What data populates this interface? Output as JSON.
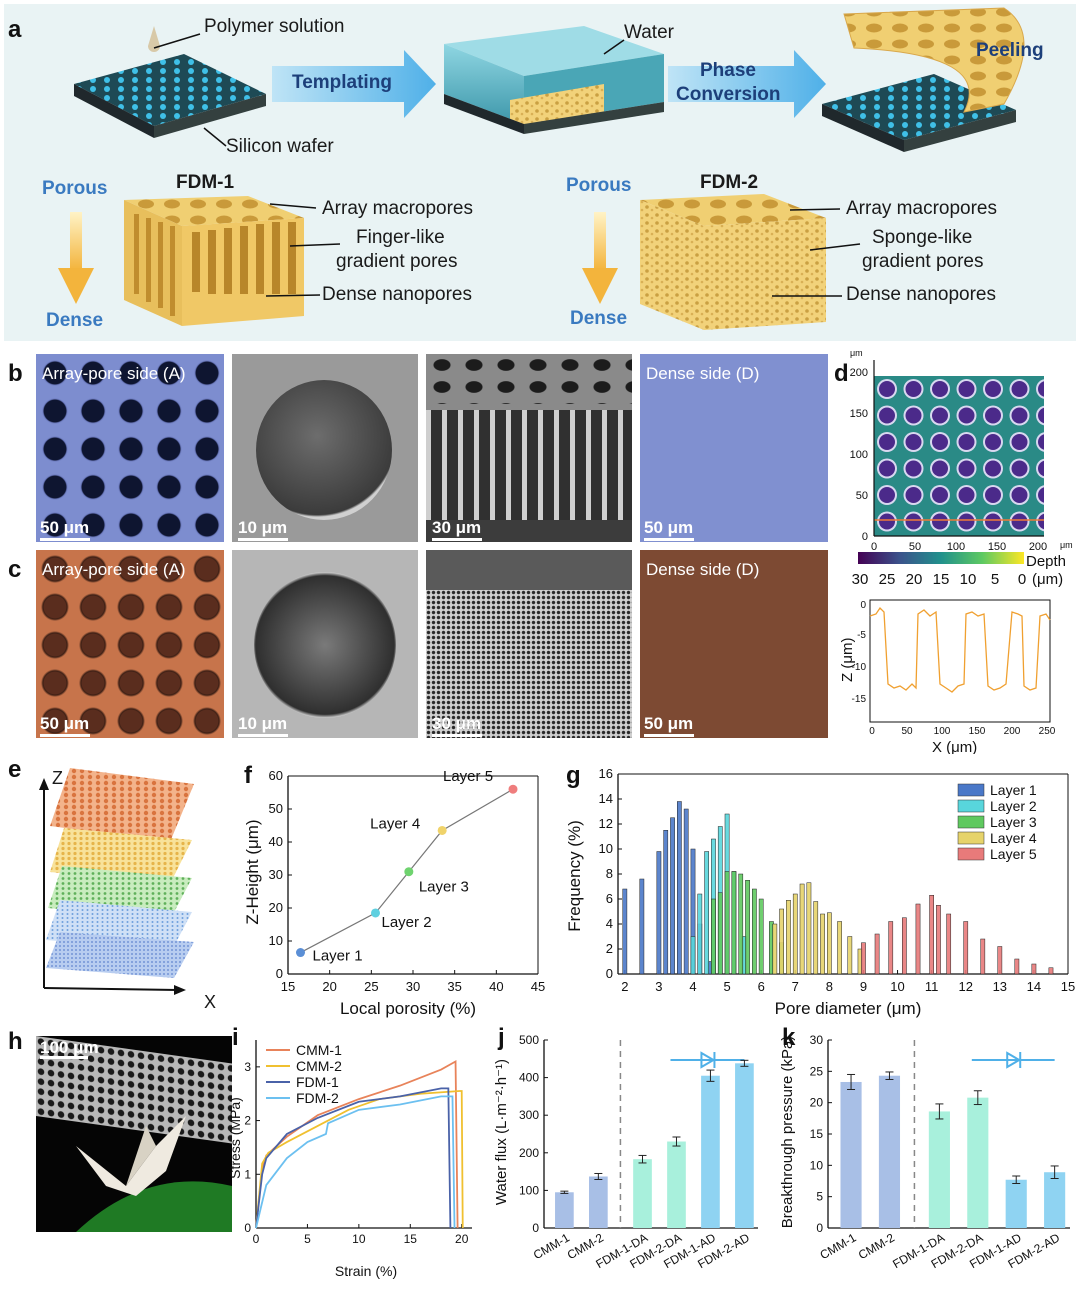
{
  "panel_labels": {
    "a": "a",
    "b": "b",
    "c": "c",
    "d": "d",
    "e": "e",
    "f": "f",
    "g": "g",
    "h": "h",
    "i": "i",
    "j": "j",
    "k": "k"
  },
  "panel_a": {
    "polymer_solution": "Polymer solution",
    "silicon_wafer": "Silicon wafer",
    "templating": "Templating",
    "water": "Water",
    "phase_conversion_1": "Phase",
    "phase_conversion_2": "Conversion",
    "peeling": "Peeling",
    "porous": "Porous",
    "dense": "Dense",
    "fdm1": "FDM-1",
    "fdm2": "FDM-2",
    "array_macropores": "Array macropores",
    "finger_1": "Finger-like",
    "finger_2": "gradient pores",
    "sponge_1": "Sponge-like",
    "sponge_2": "gradient pores",
    "dense_nanopores": "Dense nanopores",
    "colors": {
      "bg": "#e9f3f4",
      "arrow": "#5fb8e8",
      "arrow_text": "#1d3f7a",
      "porous_text": "#3a7ac0",
      "membrane": "#f0cf72"
    }
  },
  "panel_b": {
    "array_side": "Array-pore side (A)",
    "dense_side": "Dense side (D)",
    "scales": [
      "50 μm",
      "10 μm",
      "30 μm",
      "50 μm"
    ],
    "tint": "#7f8fd0"
  },
  "panel_c": {
    "array_side": "Array-pore side (A)",
    "dense_side": "Dense side (D)",
    "scales": [
      "50 μm",
      "10 μm",
      "30 μm",
      "50 μm"
    ],
    "tint": "#c7734a",
    "dense_color": "#7d4a33"
  },
  "panel_d": {
    "unit_um": "μm",
    "y_ticks": [
      "0",
      "50",
      "100",
      "150",
      "200"
    ],
    "x_ticks": [
      "0",
      "50",
      "100",
      "150",
      "200"
    ],
    "depth_label": "Depth",
    "depth_unit": "(μm)",
    "colorbar_ticks": [
      "30",
      "25",
      "20",
      "15",
      "10",
      "5",
      "0"
    ],
    "profile_ylabel": "Z (μm)",
    "profile_xlabel": "X (μm)",
    "profile_yticks": [
      "0",
      "-5",
      "-10",
      "-15"
    ],
    "profile_xticks": [
      "0",
      "50",
      "100",
      "150",
      "200",
      "250"
    ]
  },
  "panel_e": {
    "z": "Z",
    "x": "X",
    "layer_colors": [
      "#d9743f",
      "#e9c15a",
      "#7cc36e",
      "#6f9fdc",
      "#5f83cf"
    ]
  },
  "chart_data": [
    {
      "panel": "f",
      "type": "scatter",
      "xlabel": "Local porosity (%)",
      "ylabel": "Z-Height (μm)",
      "xlim": [
        15,
        45
      ],
      "ylim": [
        0,
        60
      ],
      "xticks": [
        "15",
        "20",
        "25",
        "30",
        "35",
        "40",
        "45"
      ],
      "yticks": [
        "0",
        "10",
        "20",
        "30",
        "40",
        "50",
        "60"
      ],
      "points": [
        {
          "label": "Layer 1",
          "x": 16.5,
          "y": 6.5,
          "color": "#5b8fd6"
        },
        {
          "label": "Layer 2",
          "x": 25.5,
          "y": 18.5,
          "color": "#5fd0e0"
        },
        {
          "label": "Layer 3",
          "x": 29.5,
          "y": 31,
          "color": "#6fd36f"
        },
        {
          "label": "Layer 4",
          "x": 33.5,
          "y": 43.5,
          "color": "#f0d36a"
        },
        {
          "label": "Layer 5",
          "x": 42,
          "y": 56,
          "color": "#ef7d7d"
        }
      ]
    },
    {
      "panel": "g",
      "type": "bar",
      "xlabel": "Pore diameter (μm)",
      "ylabel": "Frequency (%)",
      "xlim": [
        1.8,
        15
      ],
      "ylim": [
        0,
        16
      ],
      "xticks": [
        "2",
        "3",
        "4",
        "5",
        "6",
        "7",
        "8",
        "9",
        "10",
        "11",
        "12",
        "13",
        "14",
        "15"
      ],
      "yticks": [
        "0",
        "2",
        "4",
        "6",
        "8",
        "10",
        "12",
        "14",
        "16"
      ],
      "legend_position": "top-right",
      "series": [
        {
          "name": "Layer 1",
          "color": "#4a78c8",
          "x": [
            2,
            2.5,
            3,
            3.2,
            3.4,
            3.6,
            3.8,
            4,
            4.2,
            4.5
          ],
          "values": [
            6.8,
            7.6,
            9.8,
            11.5,
            12.5,
            13.8,
            13.2,
            10,
            4,
            1
          ]
        },
        {
          "name": "Layer 2",
          "color": "#58d6dc",
          "x": [
            4,
            4.2,
            4.4,
            4.6,
            4.8,
            5,
            5.2,
            5.5
          ],
          "values": [
            3,
            6.4,
            9.8,
            10.8,
            11.8,
            12.8,
            8.2,
            3
          ]
        },
        {
          "name": "Layer 3",
          "color": "#5fc95f",
          "x": [
            4.6,
            4.8,
            5,
            5.2,
            5.4,
            5.6,
            5.8,
            6,
            6.3,
            6.6
          ],
          "values": [
            6,
            6.5,
            8.2,
            8.2,
            8,
            7.5,
            6.8,
            6,
            4.2,
            2.5
          ]
        },
        {
          "name": "Layer 4",
          "color": "#e6d36a",
          "x": [
            6.4,
            6.6,
            6.8,
            7,
            7.2,
            7.4,
            7.6,
            7.8,
            8,
            8.3,
            8.6,
            8.9
          ],
          "values": [
            4,
            5.2,
            5.9,
            6.4,
            7.2,
            7.3,
            5.8,
            4.8,
            4.9,
            4.2,
            3,
            2
          ]
        },
        {
          "name": "Layer 5",
          "color": "#e87a7a",
          "x": [
            9,
            9.4,
            9.8,
            10.2,
            10.6,
            11,
            11.2,
            11.5,
            12,
            12.5,
            13,
            13.5,
            14,
            14.5
          ],
          "values": [
            2.5,
            3.2,
            4.2,
            4.5,
            5.6,
            6.3,
            5.5,
            4.8,
            4.2,
            2.8,
            2.2,
            1.2,
            0.8,
            0.5
          ]
        }
      ]
    },
    {
      "panel": "i",
      "type": "line",
      "xlabel": "Strain (%)",
      "ylabel": "Stress (MPa)",
      "xlim": [
        0,
        21
      ],
      "ylim": [
        0,
        3.5
      ],
      "xticks": [
        "0",
        "5",
        "10",
        "15",
        "20"
      ],
      "yticks": [
        "0",
        "1",
        "2",
        "3"
      ],
      "legend_position": "top-left",
      "series": [
        {
          "name": "CMM-1",
          "color": "#e8835a",
          "x": [
            0,
            0.6,
            1,
            3,
            6,
            10,
            14,
            18,
            19.4,
            19.6
          ],
          "values": [
            0,
            1.1,
            1.35,
            1.7,
            2.1,
            2.4,
            2.65,
            2.95,
            3.1,
            0
          ]
        },
        {
          "name": "CMM-2",
          "color": "#f0c030",
          "x": [
            0,
            0.6,
            1.2,
            3,
            6,
            9,
            12,
            16,
            19.8,
            20,
            20.1
          ],
          "values": [
            0,
            1.2,
            1.4,
            1.6,
            1.9,
            2.2,
            2.4,
            2.5,
            2.55,
            2.55,
            0
          ]
        },
        {
          "name": "FDM-1",
          "color": "#4a62a8",
          "x": [
            0,
            0.6,
            1,
            3,
            6,
            10,
            14,
            18,
            18.7,
            18.9
          ],
          "values": [
            0,
            1.0,
            1.3,
            1.75,
            2.05,
            2.35,
            2.45,
            2.6,
            2.6,
            0
          ]
        },
        {
          "name": "FDM-2",
          "color": "#6cc0f0",
          "x": [
            0,
            1,
            3,
            5,
            6.8,
            7,
            10,
            14,
            18,
            19.1,
            19.3
          ],
          "values": [
            0,
            0.8,
            1.3,
            1.6,
            1.75,
            1.95,
            2.2,
            2.3,
            2.45,
            2.45,
            0
          ]
        }
      ]
    },
    {
      "panel": "j",
      "type": "bar",
      "ylabel": "Water flux (L·m⁻²·h⁻¹)",
      "ylim": [
        0,
        500
      ],
      "yticks": [
        "0",
        "100",
        "200",
        "300",
        "400",
        "500"
      ],
      "categories": [
        "CMM-1",
        "CMM-2",
        "FDM-1-DA",
        "FDM-2-DA",
        "FDM-1-AD",
        "FDM-2-AD"
      ],
      "values": [
        95,
        137,
        183,
        230,
        405,
        438
      ],
      "errors": [
        3,
        8,
        10,
        12,
        15,
        8
      ],
      "colors": [
        "#a8bfe6",
        "#a8bfe6",
        "#a8f0dc",
        "#a8f0dc",
        "#8fd3f2",
        "#8fd3f2"
      ]
    },
    {
      "panel": "k",
      "type": "bar",
      "ylabel": "Breakthrough pressure (kPa)",
      "ylim": [
        0,
        30
      ],
      "yticks": [
        "0",
        "5",
        "10",
        "15",
        "20",
        "25",
        "30"
      ],
      "categories": [
        "CMM-1",
        "CMM-2",
        "FDM-1-DA",
        "FDM-2-DA",
        "FDM-1-AD",
        "FDM-2-AD"
      ],
      "values": [
        23.3,
        24.3,
        18.6,
        20.8,
        7.7,
        8.9
      ],
      "errors": [
        1.2,
        0.6,
        1.2,
        1.1,
        0.6,
        1.0
      ],
      "colors": [
        "#a8bfe6",
        "#a8bfe6",
        "#a8f0dc",
        "#a8f0dc",
        "#8fd3f2",
        "#8fd3f2"
      ]
    }
  ],
  "panel_h": {
    "scale": "100 μm"
  }
}
